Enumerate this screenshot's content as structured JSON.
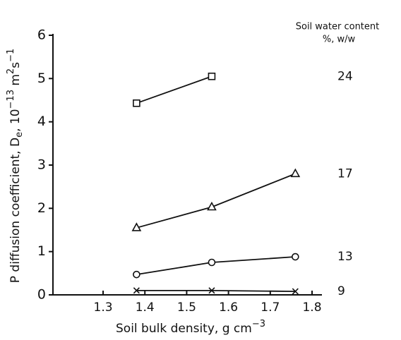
{
  "chart_data": {
    "type": "line",
    "x_label": [
      "Soil bulk density, g cm",
      "−3"
    ],
    "y_label": [
      "P diffusion coefficient, D",
      "e",
      ", 10",
      "−13",
      " m",
      "2",
      "s",
      "−1"
    ],
    "legend_title": [
      "Soil water content",
      "%, w/w"
    ],
    "x": [
      1.38,
      1.56,
      1.76
    ],
    "series": [
      {
        "name": "24",
        "marker": "square",
        "color": "#111111",
        "values": [
          4.43,
          5.05,
          null
        ]
      },
      {
        "name": "17",
        "marker": "triangle",
        "color": "#111111",
        "values": [
          1.55,
          2.03,
          2.8
        ]
      },
      {
        "name": "13",
        "marker": "circle",
        "color": "#111111",
        "values": [
          0.47,
          0.75,
          0.88
        ]
      },
      {
        "name": "9",
        "marker": "cross",
        "color": "#111111",
        "values": [
          0.1,
          0.1,
          0.08
        ]
      }
    ],
    "xlim": [
      1.18,
      1.8
    ],
    "xticks": [
      1.3,
      1.4,
      1.5,
      1.6,
      1.7,
      1.8
    ],
    "ylim": [
      0,
      6
    ],
    "yticks": [
      0,
      1,
      2,
      3,
      4,
      5,
      6
    ]
  }
}
